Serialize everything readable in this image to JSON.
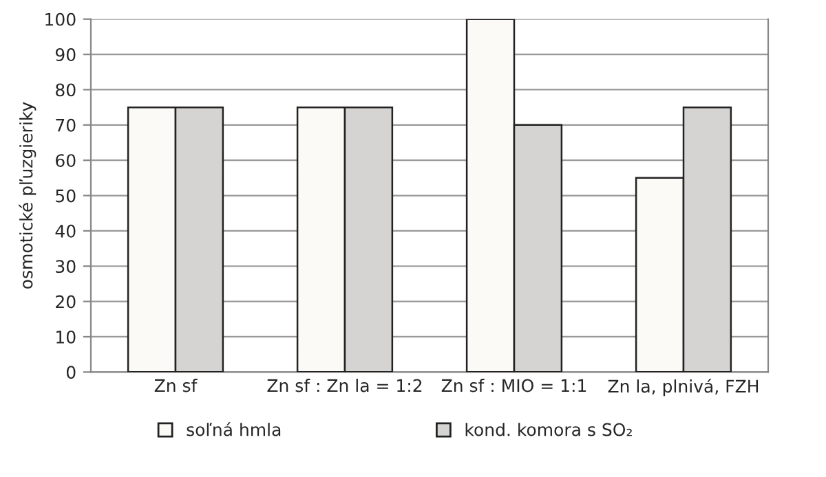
{
  "chart_data": {
    "type": "bar",
    "ylabel": "osmotické pľuzgieriky",
    "categories": [
      "Zn sf",
      "Zn sf : Zn la = 1:2",
      "Zn sf : MIO = 1:1",
      "Zn la, plnivá, FZH"
    ],
    "series": [
      {
        "name": "soľná hmla",
        "color": "#fbfaf6",
        "values": [
          75,
          75,
          100,
          55
        ]
      },
      {
        "name": "kond. komora s SO₂",
        "color": "#d6d4d2",
        "values": [
          75,
          75,
          70,
          75
        ]
      }
    ],
    "ylim": [
      0,
      100
    ],
    "yticks": [
      0,
      10,
      20,
      30,
      40,
      50,
      60,
      70,
      80,
      90,
      100
    ],
    "grid": "y",
    "legend": "bottom"
  }
}
